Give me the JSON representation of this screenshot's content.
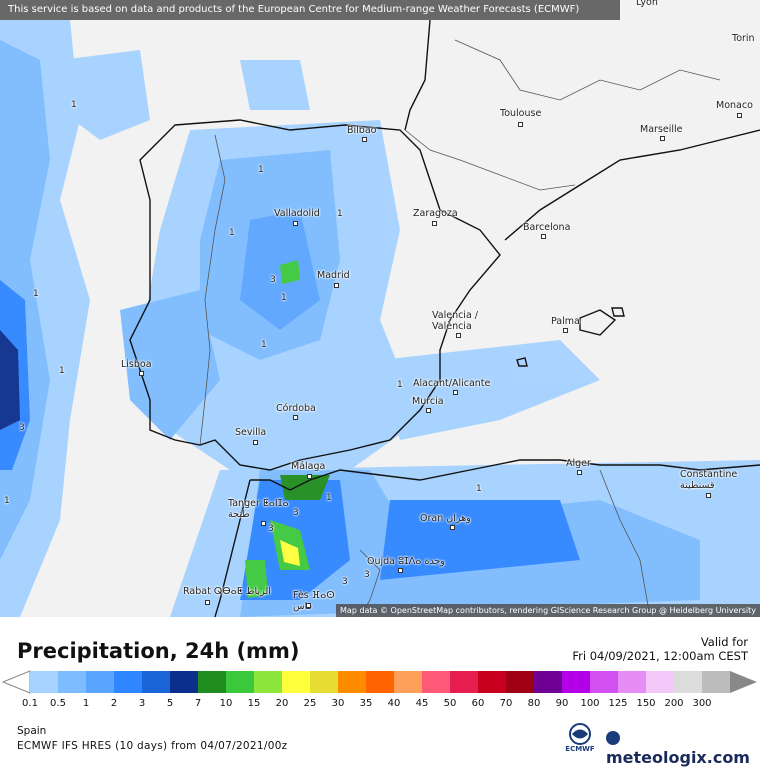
{
  "attribution_top": "This service is based on data and products of the European Centre for Medium-range Weather Forecasts (ECMWF)",
  "attribution_bottom": "Map data © OpenStreetMap contributors, rendering GIScience Research Group @ Heidelberg University",
  "cities": [
    {
      "name": "Lyon",
      "key": "lyon"
    },
    {
      "name": "Torin",
      "key": "torin"
    },
    {
      "name": "Monaco",
      "key": "monaco"
    },
    {
      "name": "Toulouse",
      "key": "toulouse"
    },
    {
      "name": "Marseille",
      "key": "marseille"
    },
    {
      "name": "Bilbao",
      "key": "bilbao"
    },
    {
      "name": "Valladolid",
      "key": "valladolid"
    },
    {
      "name": "Zaragoza",
      "key": "zaragoza"
    },
    {
      "name": "Barcelona",
      "key": "barcelona"
    },
    {
      "name": "Madrid",
      "key": "madrid"
    },
    {
      "name": "Valencia / València",
      "key": "valencia"
    },
    {
      "name": "Palma",
      "key": "palma"
    },
    {
      "name": "Lisboa",
      "key": "lisboa"
    },
    {
      "name": "Alacant/Alicante",
      "key": "alicante"
    },
    {
      "name": "Murcia",
      "key": "murcia"
    },
    {
      "name": "Córdoba",
      "key": "cordoba"
    },
    {
      "name": "Sevilla",
      "key": "sevilla"
    },
    {
      "name": "Málaga",
      "key": "malaga"
    },
    {
      "name": "Alger",
      "key": "alger"
    },
    {
      "name": "Constantine قسنطينة",
      "key": "constantine"
    },
    {
      "name": "Tanger ⵟⴰⵏⵊⴰ طنجة",
      "key": "tanger"
    },
    {
      "name": "Oran وهران",
      "key": "oran"
    },
    {
      "name": "Oujda ⵓⵊⴷⴰ وجدة",
      "key": "oujda"
    },
    {
      "name": "Rabat ⵕⴱⴰⵟ الرباط",
      "key": "rabat"
    },
    {
      "name": "Fès ⴼⴰⵙ فاس",
      "key": "fes"
    }
  ],
  "contour_labels": [
    "1",
    "1",
    "1",
    "3",
    "1",
    "1",
    "1",
    "3",
    "1",
    "3",
    "1",
    "1",
    "1",
    "1",
    "3",
    "3",
    "3",
    "1"
  ],
  "legend": {
    "title": "Precipitation, 24h (mm)",
    "valid_label": "Valid for",
    "valid_time": "Fri 04/09/2021, 12:00am CEST",
    "ticks": [
      "0.1",
      "0.5",
      "1",
      "2",
      "3",
      "5",
      "7",
      "10",
      "15",
      "20",
      "25",
      "30",
      "35",
      "40",
      "45",
      "50",
      "60",
      "70",
      "80",
      "90",
      "100",
      "125",
      "150",
      "200",
      "300"
    ],
    "colors": [
      "#a5d2ff",
      "#7dbcff",
      "#5aa5ff",
      "#2f86ff",
      "#1a66d9",
      "#0b2f8c",
      "#1e8c1e",
      "#3cc83c",
      "#8ce63c",
      "#ffff3c",
      "#e6dc32",
      "#ff8c00",
      "#ff6400",
      "#ffa05a",
      "#ff5a78",
      "#e61e50",
      "#c8001e",
      "#a00014",
      "#6e0096",
      "#b400e6",
      "#d250f0",
      "#e68cf5",
      "#f5c8fa",
      "#dcdcdc",
      "#bcbcbc"
    ],
    "region": "Spain",
    "model": "ECMWF IFS HRES (10 days) from 04/07/2021/00z",
    "ecmwf_logo_text": "ECMWF",
    "meteologix_logo_text": "meteologix.com"
  }
}
